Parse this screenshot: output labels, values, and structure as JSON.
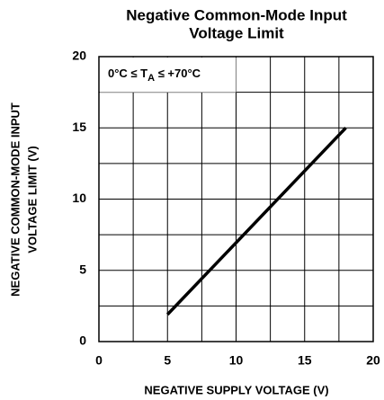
{
  "chart_data": {
    "type": "line",
    "title": [
      "Negative Common-Mode Input",
      "Voltage Limit"
    ],
    "x_label": "NEGATIVE SUPPLY VOLTAGE (V)",
    "y_label": [
      "NEGATIVE COMMON-MODE INPUT",
      "VOLTAGE LIMIT (V)"
    ],
    "annotation": [
      "0°C ≤ T",
      "A",
      " ≤ +70°C"
    ],
    "x": [
      5,
      18
    ],
    "series": [
      {
        "color": "#000000",
        "values": [
          1.9,
          15
        ]
      }
    ],
    "xlim": [
      0,
      20
    ],
    "xticks": [
      0,
      5,
      10,
      15,
      20
    ],
    "ylim": [
      0,
      20
    ],
    "yticks": [
      0,
      5,
      10,
      15,
      20
    ],
    "grid": true
  }
}
